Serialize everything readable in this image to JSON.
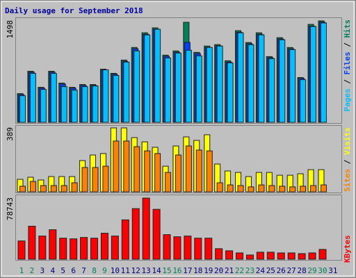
{
  "chart_data": [
    {
      "type": "bar",
      "title": "Daily usage for September 2018",
      "ylim": [
        0,
        1498
      ],
      "yticks": [
        1498
      ],
      "legend_separator": " / ",
      "series": [
        {
          "name": "Hits",
          "color": "#00805c",
          "values": [
            424,
            754,
            517,
            754,
            579,
            517,
            558,
            558,
            785,
            723,
            919,
            1105,
            1322,
            1395,
            992,
            1054,
            1477,
            1033,
            1126,
            1147,
            909,
            1353,
            1178,
            1322,
            971,
            1250,
            1105,
            661,
            1446,
            1498,
            null
          ]
        },
        {
          "name": "Files",
          "color": "#0040ff",
          "values": [
            410,
            740,
            505,
            740,
            565,
            505,
            545,
            545,
            770,
            710,
            900,
            1085,
            1300,
            1375,
            975,
            1035,
            1180,
            1015,
            1105,
            1130,
            890,
            1330,
            1160,
            1300,
            955,
            1230,
            1085,
            650,
            1420,
            1480,
            null
          ]
        },
        {
          "name": "Pages",
          "color": "#00c0ff",
          "values": [
            393,
            723,
            486,
            723,
            527,
            475,
            527,
            537,
            775,
            692,
            889,
            1054,
            1291,
            1374,
            950,
            1023,
            1064,
            981,
            1105,
            1126,
            878,
            1322,
            1147,
            1291,
            940,
            1219,
            1074,
            630,
            1415,
            1467,
            null
          ]
        }
      ]
    },
    {
      "type": "bar",
      "ylim": [
        0,
        389
      ],
      "yticks": [
        389
      ],
      "legend_separator": " / ",
      "series": [
        {
          "name": "Visits",
          "color": "#ffff00",
          "values": [
            76,
            89,
            72,
            93,
            93,
            93,
            190,
            224,
            233,
            389,
            389,
            330,
            304,
            271,
            156,
            279,
            334,
            313,
            347,
            169,
            127,
            118,
            93,
            118,
            118,
            101,
            101,
            110,
            135,
            135,
            null
          ]
        },
        {
          "name": "Sites",
          "color": "#ff8000",
          "values": [
            34,
            63,
            38,
            38,
            38,
            55,
            148,
            148,
            156,
            309,
            309,
            275,
            249,
            233,
            118,
            224,
            279,
            254,
            249,
            55,
            42,
            38,
            30,
            42,
            38,
            34,
            30,
            34,
            38,
            42,
            null
          ]
        }
      ]
    },
    {
      "type": "bar",
      "ylim": [
        0,
        78743
      ],
      "yticks": [
        78743
      ],
      "series": [
        {
          "name": "KBytes",
          "color": "#ff0000",
          "values": [
            23530,
            42540,
            29870,
            38010,
            27150,
            26250,
            28060,
            27150,
            33490,
            29870,
            50680,
            65160,
            78743,
            64260,
            31680,
            28960,
            29870,
            27150,
            27150,
            13580,
            10860,
            8150,
            5430,
            9050,
            9050,
            8150,
            8150,
            7240,
            8150,
            12670,
            null
          ]
        }
      ],
      "categories": [
        "1",
        "2",
        "3",
        "4",
        "5",
        "6",
        "7",
        "8",
        "9",
        "10",
        "11",
        "12",
        "13",
        "14",
        "15",
        "16",
        "17",
        "18",
        "19",
        "20",
        "21",
        "22",
        "23",
        "24",
        "25",
        "26",
        "27",
        "28",
        "29",
        "30",
        "31"
      ],
      "category_colors": [
        "#00805c",
        "#00805c",
        "#000080",
        "#000080",
        "#000080",
        "#000080",
        "#000080",
        "#00805c",
        "#00805c",
        "#000080",
        "#000080",
        "#000080",
        "#000080",
        "#000080",
        "#00805c",
        "#00805c",
        "#000080",
        "#000080",
        "#000080",
        "#000080",
        "#000080",
        "#00805c",
        "#00805c",
        "#000080",
        "#000080",
        "#000080",
        "#000080",
        "#000080",
        "#00805c",
        "#00805c",
        "#000080"
      ]
    }
  ]
}
